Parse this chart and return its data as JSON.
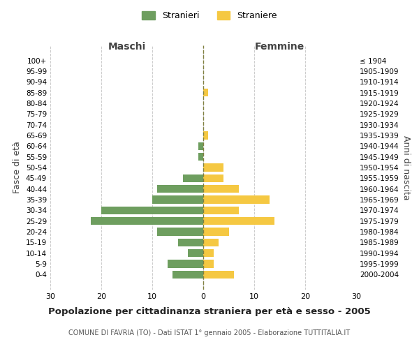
{
  "age_groups": [
    "100+",
    "95-99",
    "90-94",
    "85-89",
    "80-84",
    "75-79",
    "70-74",
    "65-69",
    "60-64",
    "55-59",
    "50-54",
    "45-49",
    "40-44",
    "35-39",
    "30-34",
    "25-29",
    "20-24",
    "15-19",
    "10-14",
    "5-9",
    "0-4"
  ],
  "birth_years": [
    "≤ 1904",
    "1905-1909",
    "1910-1914",
    "1915-1919",
    "1920-1924",
    "1925-1929",
    "1930-1934",
    "1935-1939",
    "1940-1944",
    "1945-1949",
    "1950-1954",
    "1955-1959",
    "1960-1964",
    "1965-1969",
    "1970-1974",
    "1975-1979",
    "1980-1984",
    "1985-1989",
    "1990-1994",
    "1995-1999",
    "2000-2004"
  ],
  "maschi": [
    0,
    0,
    0,
    0,
    0,
    0,
    0,
    0,
    1,
    1,
    0,
    4,
    9,
    10,
    20,
    22,
    9,
    5,
    3,
    7,
    6
  ],
  "femmine": [
    0,
    0,
    0,
    1,
    0,
    0,
    0,
    1,
    0,
    0,
    4,
    4,
    7,
    13,
    7,
    14,
    5,
    3,
    2,
    2,
    6
  ],
  "color_maschi": "#6e9e5f",
  "color_femmine": "#f5c842",
  "title": "Popolazione per cittadinanza straniera per età e sesso - 2005",
  "subtitle": "COMUNE DI FAVRIA (TO) - Dati ISTAT 1° gennaio 2005 - Elaborazione TUTTITALIA.IT",
  "xlabel_left": "Maschi",
  "xlabel_right": "Femmine",
  "ylabel_left": "Fasce di età",
  "ylabel_right": "Anni di nascita",
  "legend_maschi": "Stranieri",
  "legend_femmine": "Straniere",
  "xlim": 30,
  "background_color": "#ffffff",
  "grid_color": "#cccccc"
}
